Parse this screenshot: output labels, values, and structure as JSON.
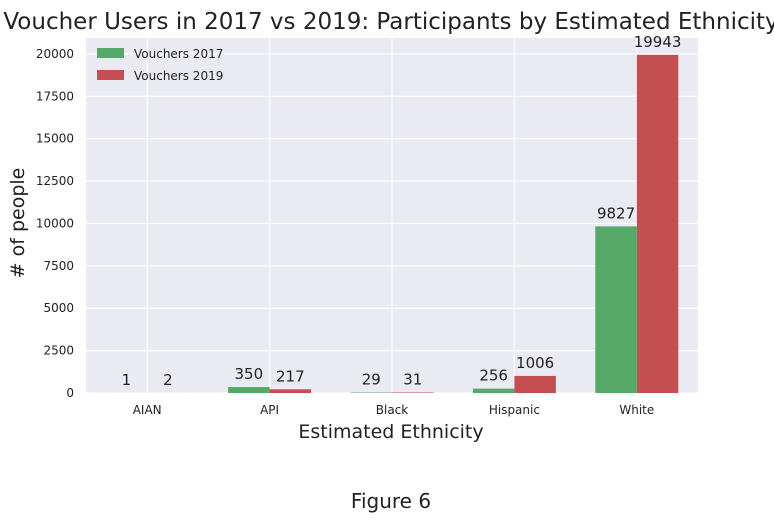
{
  "chart_data": {
    "type": "bar",
    "title": "Voucher Users in 2017 vs 2019: Participants by Estimated Ethnicity",
    "xlabel": "Estimated Ethnicity",
    "ylabel": "# of people",
    "categories": [
      "AIAN",
      "API",
      "Black",
      "Hispanic",
      "White"
    ],
    "series": [
      {
        "name": "Vouchers 2017",
        "color": "#55a868",
        "values": [
          1,
          350,
          29,
          256,
          9827
        ]
      },
      {
        "name": "Vouchers 2019",
        "color": "#c44e52",
        "values": [
          2,
          217,
          31,
          1006,
          19943
        ]
      }
    ],
    "yticks": [
      0,
      2500,
      5000,
      7500,
      10000,
      12500,
      15000,
      17500,
      20000
    ],
    "ylim": [
      0,
      20939
    ],
    "grid": true,
    "legend": "top-left",
    "background": "#eaeaf2"
  },
  "caption": "Figure 6"
}
